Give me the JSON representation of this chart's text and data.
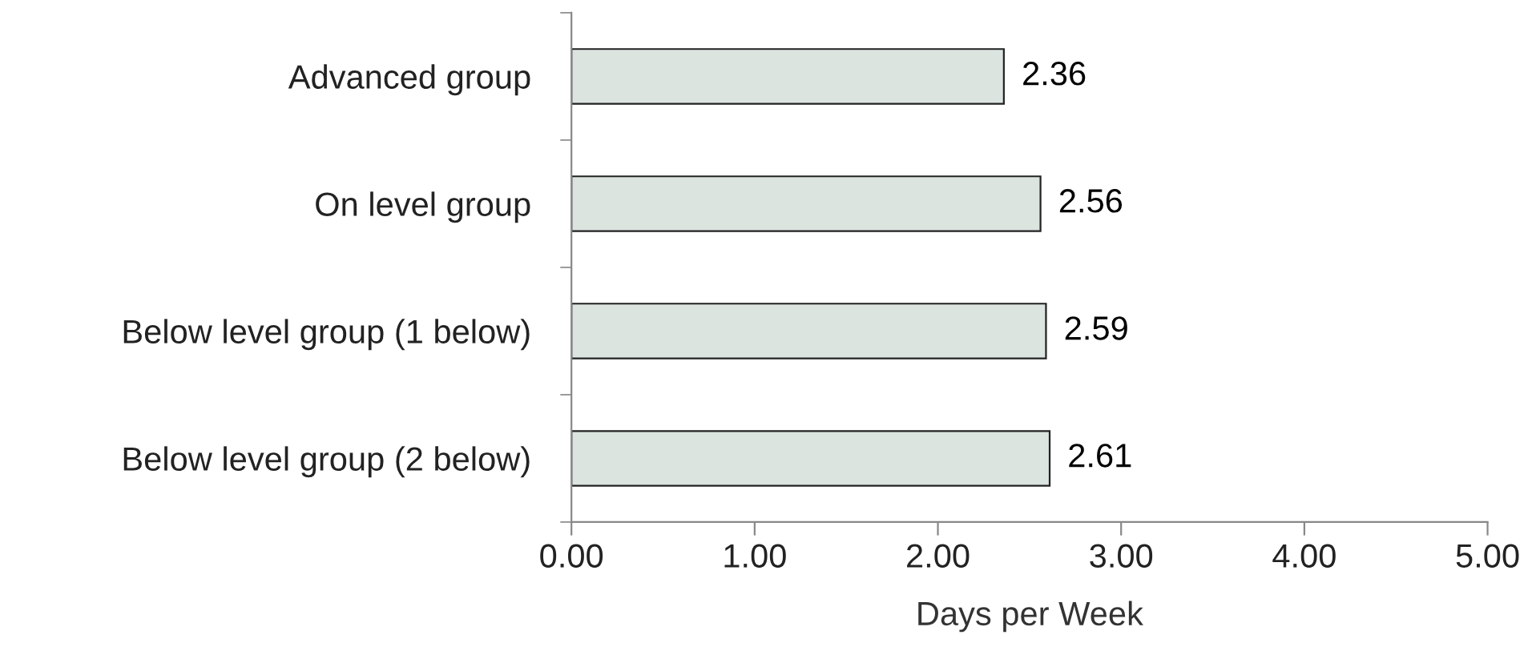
{
  "chart_data": {
    "type": "bar",
    "orientation": "horizontal",
    "xlabel": "Days per Week",
    "categories": [
      "Advanced group",
      "On level group",
      "Below level group (1 below)",
      "Below level group (2 below)"
    ],
    "values": [
      2.36,
      2.56,
      2.59,
      2.61
    ],
    "color": "#dce4e0",
    "data_labels": true,
    "xlim": [
      0,
      5
    ],
    "xticks": [
      {
        "value": 0,
        "label": "0.00"
      },
      {
        "value": 1,
        "label": "1.00"
      },
      {
        "value": 2,
        "label": "2.00"
      },
      {
        "value": 3,
        "label": "3.00"
      },
      {
        "value": 4,
        "label": "4.00"
      },
      {
        "value": 5,
        "label": "5.00"
      }
    ],
    "grid": false
  }
}
